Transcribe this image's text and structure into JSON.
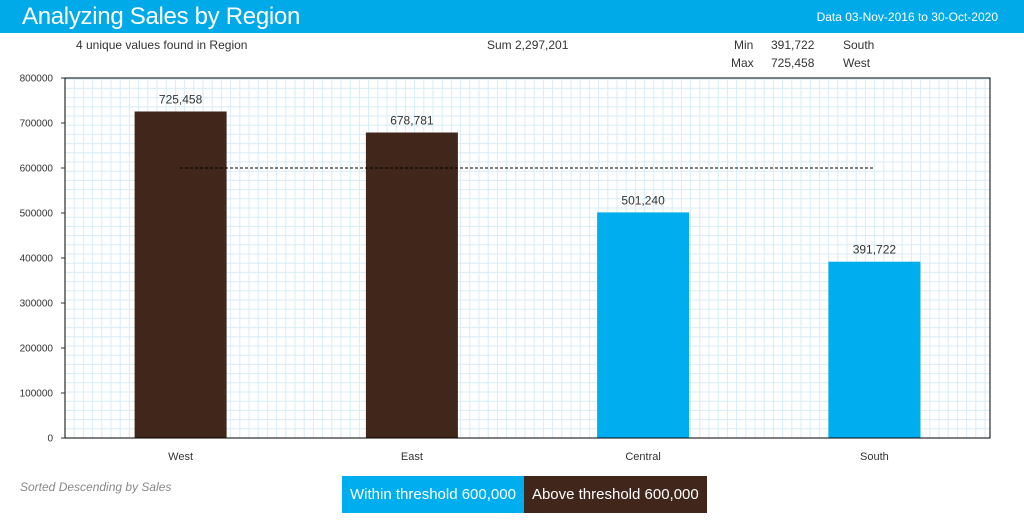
{
  "header": {
    "title": "Analyzing Sales by Region",
    "date_range": "Data 03-Nov-2016 to 30-Oct-2020",
    "background_color": "#00a9e8"
  },
  "summary": {
    "unique_values": "4 unique values found in Region",
    "sum": "Sum 2,297,201",
    "min_label": "Min",
    "min_value": "391,722",
    "min_region": "South",
    "max_label": "Max",
    "max_value": "725,458",
    "max_region": "West"
  },
  "chart_data": {
    "type": "bar",
    "categories": [
      "West",
      "East",
      "Central",
      "South"
    ],
    "values": [
      725458,
      678781,
      501240,
      391722
    ],
    "value_labels": [
      "725,458",
      "678,781",
      "501,240",
      "391,722"
    ],
    "ylim": [
      0,
      800000
    ],
    "y_ticks": [
      0,
      100000,
      200000,
      300000,
      400000,
      500000,
      600000,
      700000,
      800000
    ],
    "y_tick_labels": [
      "0",
      "100000",
      "200000",
      "300000",
      "400000",
      "500000",
      "600000",
      "700000",
      "800000"
    ],
    "threshold": 600000,
    "grid": true,
    "title": "",
    "xlabel": "",
    "ylabel": "",
    "colors": {
      "above": "#41261c",
      "within": "#00aeef",
      "grid": "#d8ecf6",
      "threshold_line": "#000000"
    }
  },
  "footnote": "Sorted Descending by Sales",
  "legend": {
    "within": "Within threshold 600,000",
    "above": "Above threshold 600,000"
  }
}
